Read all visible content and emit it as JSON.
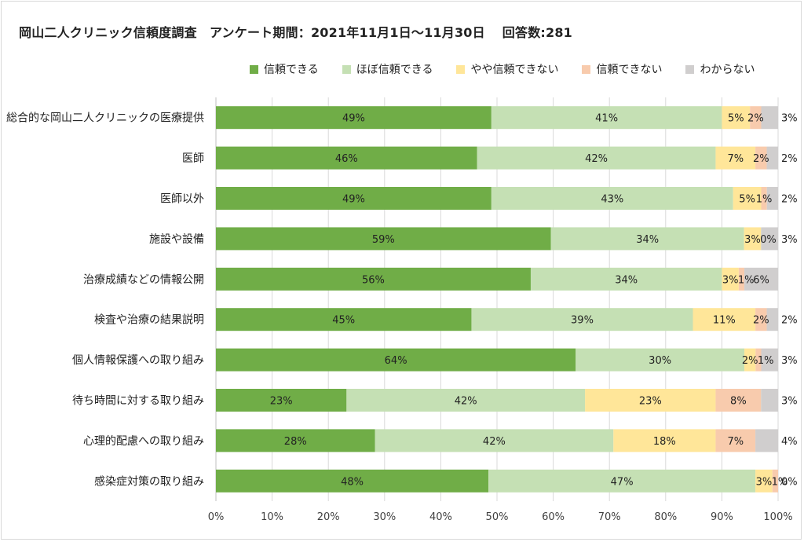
{
  "title": "岡山二人クリニック信頼度調査　アンケート期間：2021年11月1日～11月30日　 回答数:281",
  "chart_data": {
    "type": "bar",
    "orientation": "horizontal",
    "stacked": "percent",
    "categories": [
      "総合的な岡山二人クリニックの医療提供",
      "医師",
      "医師以外",
      "施設や設備",
      "治療成績などの情報公開",
      "検査や治療の結果説明",
      "個人情報保護への取り組み",
      "待ち時間に対する取り組み",
      "心理的配慮への取り組み",
      "感染症対策の取り組み"
    ],
    "series": [
      {
        "name": "信頼できる",
        "color": "#70ad47",
        "values": [
          49,
          46,
          49,
          59,
          56,
          45,
          64,
          23,
          28,
          48
        ]
      },
      {
        "name": "ほぼ信頼できる",
        "color": "#c5e0b4",
        "values": [
          41,
          42,
          43,
          34,
          34,
          39,
          30,
          42,
          42,
          47
        ]
      },
      {
        "name": "やや信頼できない",
        "color": "#ffe699",
        "values": [
          5,
          7,
          5,
          3,
          3,
          11,
          2,
          23,
          18,
          3
        ]
      },
      {
        "name": "信頼できない",
        "color": "#f8cbad",
        "values": [
          2,
          2,
          1,
          0,
          1,
          2,
          1,
          8,
          7,
          1
        ]
      },
      {
        "name": "わからない",
        "color": "#d0cece",
        "values": [
          3,
          2,
          2,
          3,
          6,
          2,
          3,
          3,
          4,
          0
        ]
      }
    ],
    "xlim": [
      0,
      100
    ],
    "x_ticks": [
      "0%",
      "10%",
      "20%",
      "30%",
      "40%",
      "50%",
      "60%",
      "70%",
      "80%",
      "90%",
      "100%"
    ],
    "legend_position": "top",
    "grid": true
  }
}
